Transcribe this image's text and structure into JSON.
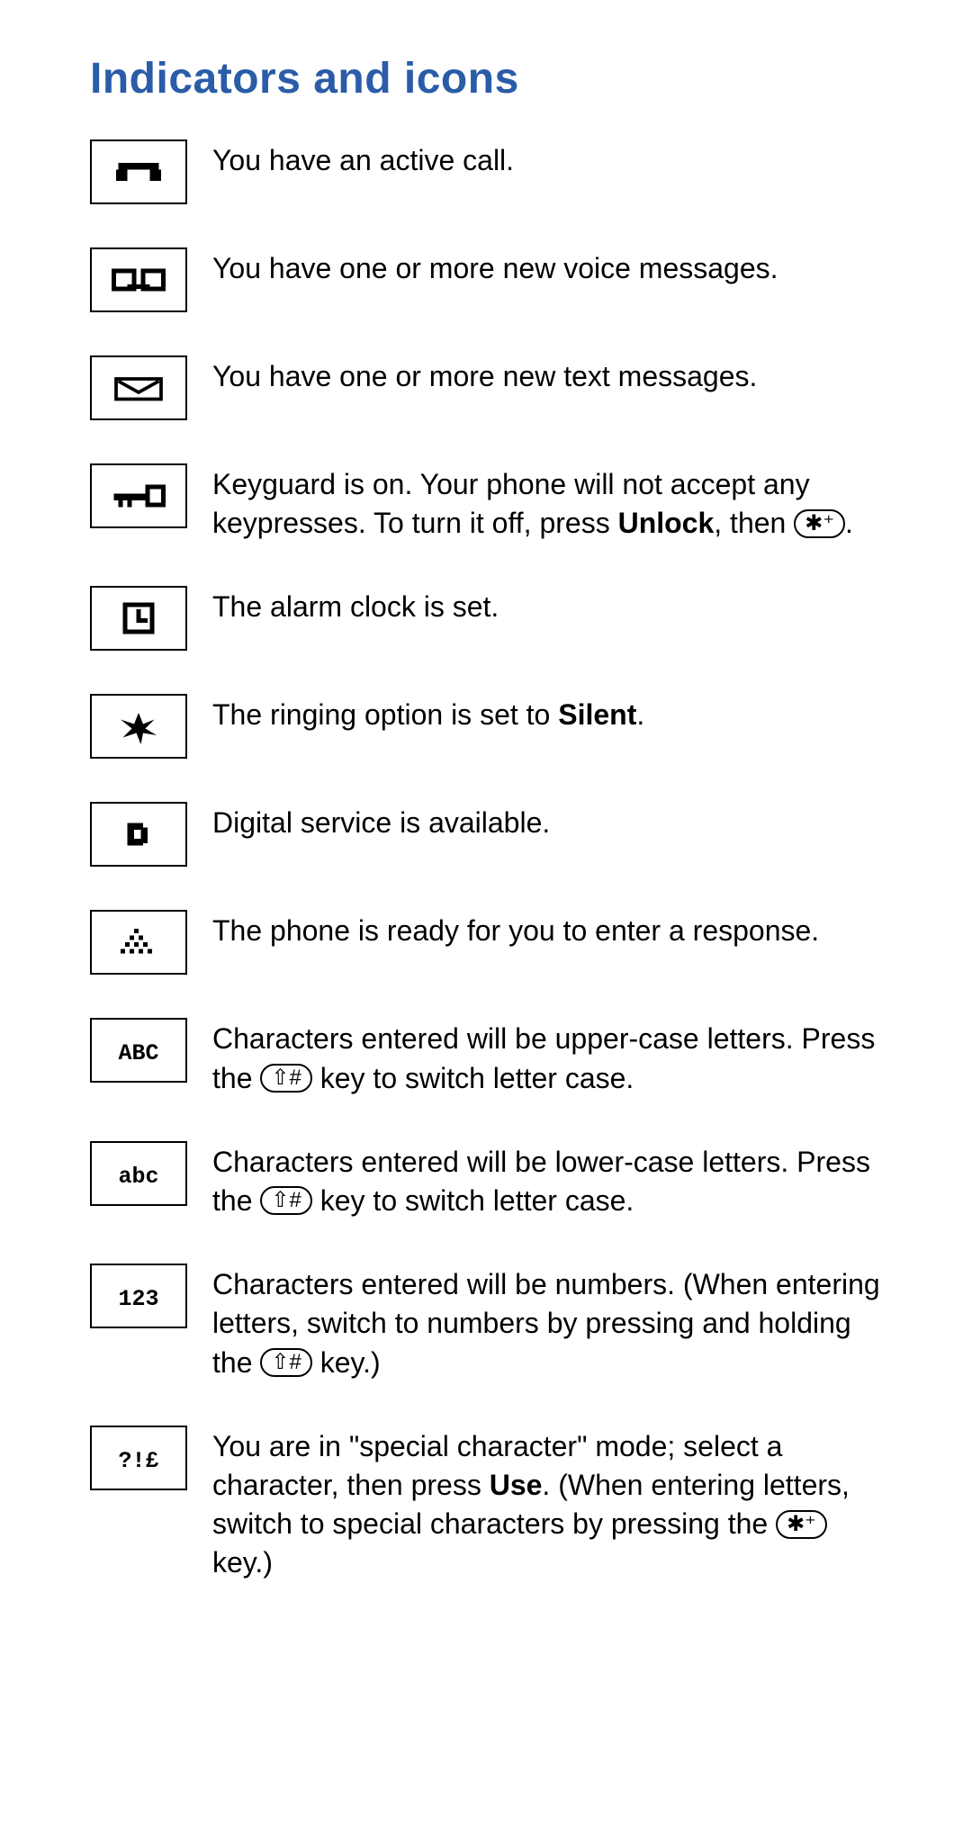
{
  "title": "Indicators and icons",
  "title_color": "#2a5ca8",
  "text_color": "#000000",
  "icon_border_color": "#000000",
  "rows": [
    {
      "id": "active-call",
      "icon": "phone",
      "text": "You have an active call."
    },
    {
      "id": "voice-msg",
      "icon": "voicemail",
      "text": "You have one or more new voice messages."
    },
    {
      "id": "text-msg",
      "icon": "envelope",
      "text": "You have one or more new text messages."
    },
    {
      "id": "keyguard",
      "icon": "key",
      "parts": [
        "Keyguard is on. Your phone will not accept any keypresses. To turn it off, press ",
        {
          "bold": "Unlock"
        },
        ", then ",
        {
          "key": "star"
        },
        "."
      ]
    },
    {
      "id": "alarm",
      "icon": "clock",
      "text": "The alarm clock is set."
    },
    {
      "id": "silent",
      "icon": "silent",
      "parts": [
        "The ringing option is set to ",
        {
          "bold": "Silent"
        },
        "."
      ]
    },
    {
      "id": "digital",
      "icon": "d",
      "text": "Digital service is available."
    },
    {
      "id": "response",
      "icon": "keypad",
      "text": "The phone is ready for you to enter a response."
    },
    {
      "id": "abc-upper",
      "icon": "ABC",
      "parts": [
        "Characters entered will be upper-case letters. Press the ",
        {
          "key": "hash"
        },
        " key to switch letter case."
      ]
    },
    {
      "id": "abc-lower",
      "icon": "abc",
      "parts": [
        "Characters entered will be lower-case letters. Press the ",
        {
          "key": "hash"
        },
        " key to switch letter case."
      ]
    },
    {
      "id": "numbers",
      "icon": "123",
      "parts": [
        "Characters entered will be numbers. (When entering letters, switch to numbers by pressing and holding the ",
        {
          "key": "hash"
        },
        " key.)"
      ]
    },
    {
      "id": "special",
      "icon": "?!£",
      "parts": [
        "You are in \"special character\" mode; select a character, then press ",
        {
          "bold": "Use"
        },
        ". (When entering letters, switch to special characters by pressing the ",
        {
          "key": "star"
        },
        " key.)"
      ]
    }
  ],
  "key_glyphs": {
    "star": "✱⁺",
    "hash": "⇧#"
  }
}
